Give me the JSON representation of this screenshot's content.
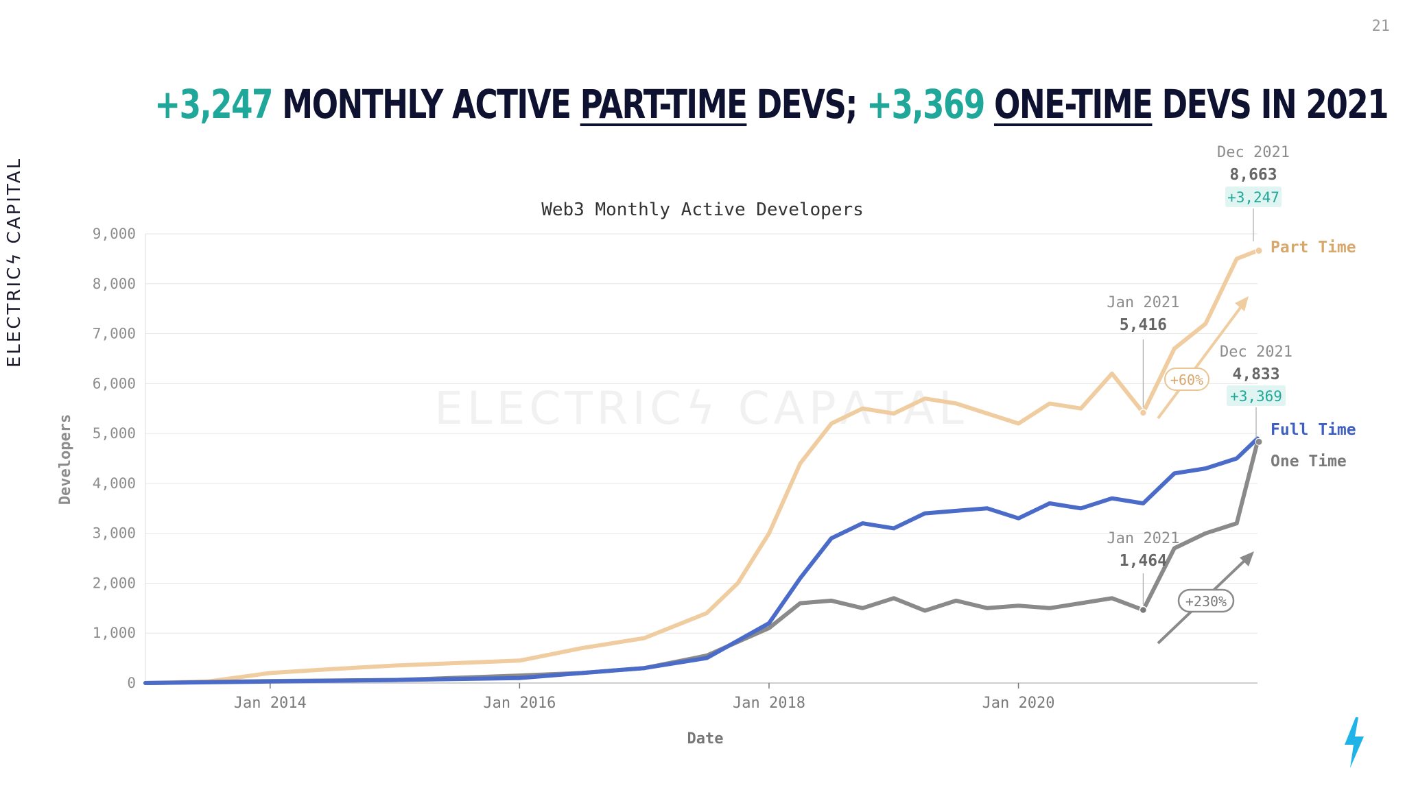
{
  "page_number": "21",
  "headline": {
    "part1_number": "+3,247",
    "part1_text": " MONTHLY ACTIVE ",
    "part1_underlined": "PART-TIME",
    "part1_tail": " DEVS; ",
    "part2_number": "+3,369",
    "part2_space": " ",
    "part2_underlined": "ONE-TIME",
    "part2_tail": " DEVS IN 2021"
  },
  "brand": {
    "text": "ELECTRICϟ CAPITAL",
    "watermark": "ELECTRICϟ CAPΛTAL"
  },
  "colors": {
    "part_time": "#f0cda0",
    "full_time": "#4a6bc8",
    "one_time": "#8a8a8a",
    "accent": "#1fa79a",
    "navy": "#0e1130",
    "bolt": "#1fb3e8"
  },
  "chart_data": {
    "type": "line",
    "title": "Web3 Monthly Active Developers",
    "xlabel": "Date",
    "ylabel": "Developers",
    "ylim": [
      0,
      9000
    ],
    "yticks": [
      0,
      1000,
      2000,
      3000,
      4000,
      5000,
      6000,
      7000,
      8000,
      9000
    ],
    "ytick_labels": [
      "0",
      "1,000",
      "2,000",
      "3,000",
      "4,000",
      "5,000",
      "6,000",
      "7,000",
      "8,000",
      "9,000"
    ],
    "xlim": [
      "2013-01",
      "2021-12"
    ],
    "xticks": [
      "2014-01",
      "2016-01",
      "2018-01",
      "2020-01"
    ],
    "xtick_labels": [
      "Jan 2014",
      "Jan 2016",
      "Jan 2018",
      "Jan 2020"
    ],
    "grid": true,
    "series": [
      {
        "name": "Part Time",
        "color": "#f0cda0",
        "x": [
          "2013-01",
          "2013-07",
          "2014-01",
          "2014-07",
          "2015-01",
          "2015-07",
          "2016-01",
          "2016-07",
          "2017-01",
          "2017-07",
          "2017-10",
          "2018-01",
          "2018-04",
          "2018-07",
          "2018-10",
          "2019-01",
          "2019-04",
          "2019-07",
          "2019-10",
          "2020-01",
          "2020-04",
          "2020-07",
          "2020-10",
          "2021-01",
          "2021-04",
          "2021-07",
          "2021-10",
          "2021-12"
        ],
        "values": [
          0,
          30,
          200,
          280,
          350,
          400,
          450,
          700,
          900,
          1400,
          2000,
          3000,
          4400,
          5200,
          5500,
          5400,
          5700,
          5600,
          5400,
          5200,
          5600,
          5500,
          6200,
          5416,
          6700,
          7200,
          8500,
          8663
        ]
      },
      {
        "name": "Full Time",
        "color": "#4a6bc8",
        "x": [
          "2013-01",
          "2014-01",
          "2015-01",
          "2016-01",
          "2016-07",
          "2017-01",
          "2017-07",
          "2018-01",
          "2018-04",
          "2018-07",
          "2018-10",
          "2019-01",
          "2019-04",
          "2019-07",
          "2019-10",
          "2020-01",
          "2020-04",
          "2020-07",
          "2020-10",
          "2021-01",
          "2021-04",
          "2021-07",
          "2021-10",
          "2021-12"
        ],
        "values": [
          0,
          30,
          60,
          100,
          200,
          300,
          500,
          1200,
          2100,
          2900,
          3200,
          3100,
          3400,
          3450,
          3500,
          3300,
          3600,
          3500,
          3700,
          3600,
          4200,
          4300,
          4500,
          4900
        ]
      },
      {
        "name": "One Time",
        "color": "#8a8a8a",
        "x": [
          "2013-01",
          "2014-01",
          "2015-01",
          "2016-01",
          "2016-07",
          "2017-01",
          "2017-07",
          "2018-01",
          "2018-04",
          "2018-07",
          "2018-10",
          "2019-01",
          "2019-04",
          "2019-07",
          "2019-10",
          "2020-01",
          "2020-04",
          "2020-07",
          "2020-10",
          "2021-01",
          "2021-04",
          "2021-07",
          "2021-10",
          "2021-12"
        ],
        "values": [
          0,
          40,
          60,
          150,
          200,
          300,
          550,
          1100,
          1600,
          1650,
          1500,
          1700,
          1450,
          1650,
          1500,
          1550,
          1500,
          1600,
          1700,
          1464,
          2700,
          3000,
          3200,
          4833
        ]
      }
    ],
    "annotations": [
      {
        "series": "Part Time",
        "date_label": "Dec 2021",
        "value_label": "8,663",
        "change_label": "+3,247"
      },
      {
        "series": "Part Time",
        "date_label": "Jan 2021",
        "value_label": "5,416"
      },
      {
        "series": "Part Time",
        "growth_label": "+60%"
      },
      {
        "series": "One Time",
        "date_label": "Dec 2021",
        "value_label": "4,833",
        "change_label": "+3,369"
      },
      {
        "series": "One Time",
        "date_label": "Jan 2021",
        "value_label": "1,464"
      },
      {
        "series": "One Time",
        "growth_label": "+230%"
      }
    ],
    "legend": [
      "Part Time",
      "Full Time",
      "One Time"
    ]
  }
}
